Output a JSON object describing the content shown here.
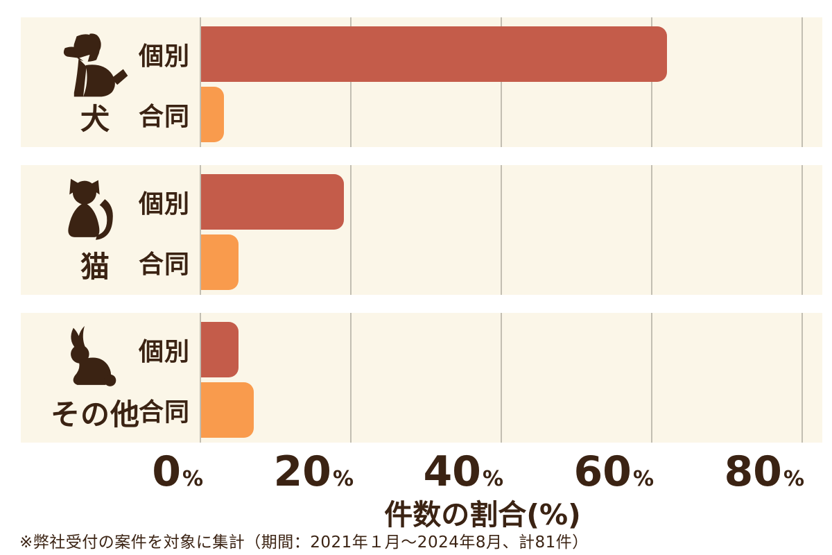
{
  "chart_data": {
    "type": "bar",
    "orientation": "horizontal",
    "title": "",
    "xlabel": "件数の割合(%)",
    "categories": [
      "犬",
      "猫",
      "その他"
    ],
    "category_icons": [
      "dog-icon",
      "cat-icon",
      "rabbit-icon"
    ],
    "series": [
      {
        "name": "個別",
        "color": "#c45c4a",
        "values": [
          62,
          19,
          5
        ]
      },
      {
        "name": "合同",
        "color": "#f99b4d",
        "values": [
          3,
          5,
          7
        ]
      }
    ],
    "x_ticks": [
      0,
      20,
      40,
      60,
      80
    ],
    "tick_suffix": "%",
    "xlim": [
      0,
      82.7
    ],
    "grid": true,
    "legend_position": "none"
  },
  "footnote": "※弊社受付の案件を対象に集計（期間：2021年１月～2024年8月、計81件）",
  "colors": {
    "panel_bg": "#fbf6e8",
    "grid_line": "#c2beb2",
    "text": "#3b2313",
    "bar_individual": "#c45c4a",
    "bar_joint": "#f99b4d",
    "page_bg": "#ffffff"
  }
}
